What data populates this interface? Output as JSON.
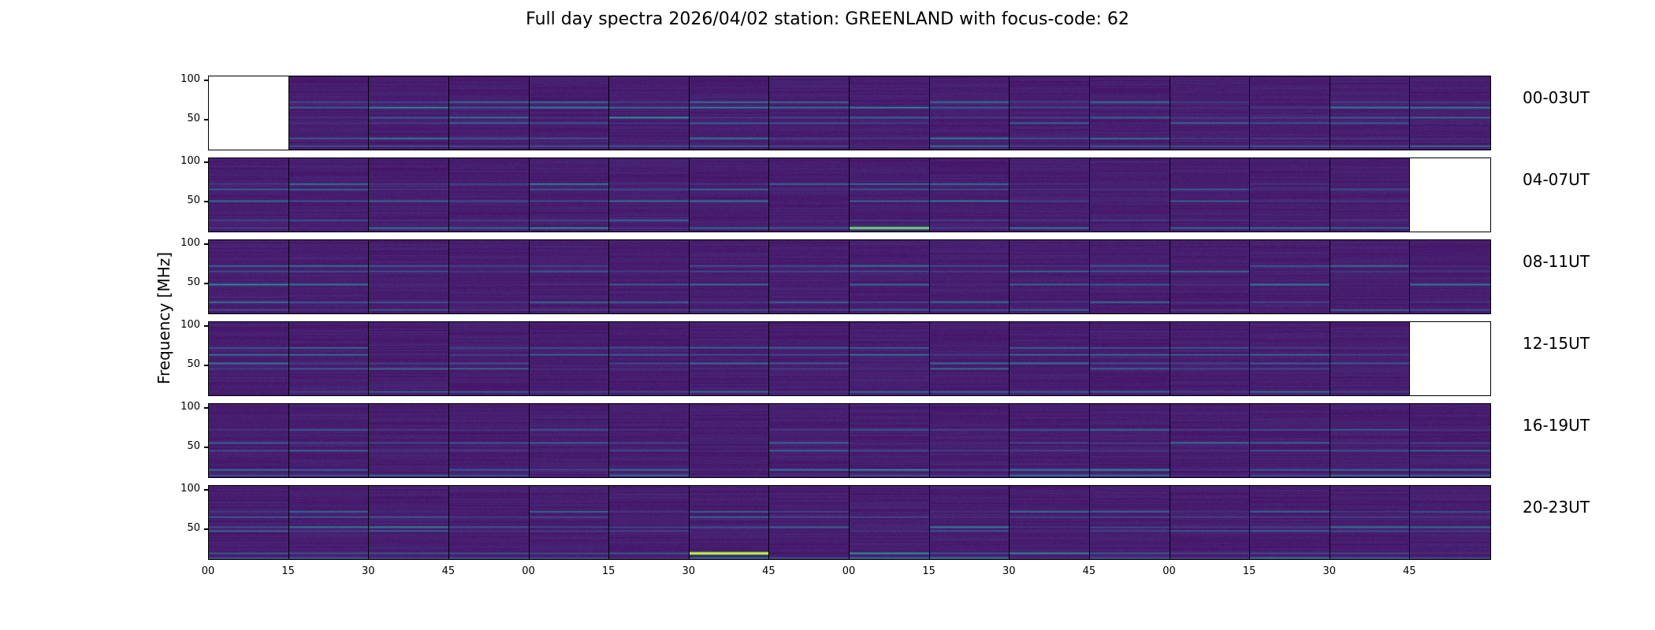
{
  "chart_data": {
    "type": "heatmap",
    "title": "Full day spectra 2026/04/02 station: GREENLAND with focus-code: 62",
    "ylabel": "Frequency [MHz]",
    "xlabel": "",
    "ylim": [
      10,
      105
    ],
    "yticks": [
      "100",
      "50"
    ],
    "ytick_values": [
      100,
      50
    ],
    "xtick_labels": [
      "00",
      "15",
      "30",
      "45",
      "00",
      "15",
      "30",
      "45",
      "00",
      "15",
      "30",
      "45",
      "00",
      "15",
      "30",
      "45"
    ],
    "colormap": "viridis",
    "panels_per_row": 16,
    "panel_minutes": 15,
    "rows": [
      {
        "label": "00-03UT",
        "empty_panels": [
          0
        ],
        "bands": [
          [
            72,
            0.35
          ],
          [
            65,
            0.45
          ],
          [
            52,
            0.55
          ],
          [
            45,
            0.3
          ],
          [
            25,
            0.45
          ],
          [
            15,
            0.35
          ]
        ]
      },
      {
        "label": "04-07UT",
        "empty_panels": [
          15
        ],
        "bands": [
          [
            72,
            0.4
          ],
          [
            65,
            0.3
          ],
          [
            50,
            0.45
          ],
          [
            25,
            0.3
          ],
          [
            15,
            0.5
          ]
        ]
      },
      {
        "label": "08-11UT",
        "empty_panels": [],
        "bands": [
          [
            72,
            0.35
          ],
          [
            65,
            0.3
          ],
          [
            48,
            0.45
          ],
          [
            25,
            0.35
          ],
          [
            15,
            0.3
          ]
        ]
      },
      {
        "label": "12-15UT",
        "empty_panels": [
          15
        ],
        "bands": [
          [
            72,
            0.3
          ],
          [
            63,
            0.4
          ],
          [
            52,
            0.5
          ],
          [
            45,
            0.35
          ],
          [
            15,
            0.4
          ]
        ]
      },
      {
        "label": "16-19UT",
        "empty_panels": [],
        "bands": [
          [
            72,
            0.3
          ],
          [
            55,
            0.35
          ],
          [
            45,
            0.3
          ],
          [
            20,
            0.5
          ],
          [
            13,
            0.4
          ]
        ]
      },
      {
        "label": "20-23UT",
        "empty_panels": [],
        "bands": [
          [
            72,
            0.35
          ],
          [
            65,
            0.3
          ],
          [
            52,
            0.45
          ],
          [
            47,
            0.3
          ],
          [
            18,
            0.5
          ],
          [
            12,
            0.4
          ]
        ]
      }
    ],
    "highlights": [
      {
        "row": 5,
        "panel": 6,
        "freq_mhz": 18,
        "intensity": 1.0
      },
      {
        "row": 1,
        "panel": 8,
        "freq_mhz": 15,
        "intensity": 0.75
      }
    ]
  }
}
